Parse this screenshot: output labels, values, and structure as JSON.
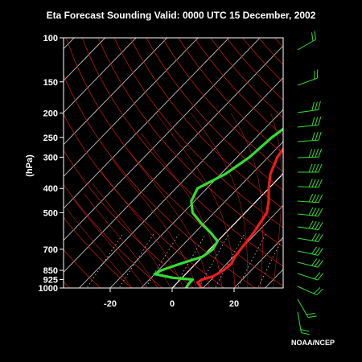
{
  "title": "Eta Forecast Sounding Valid: 0000 UTC 15 December, 2002",
  "credit": "NOAA/NCEP",
  "chart_data": {
    "type": "line",
    "title": "Eta Forecast Sounding Valid: 0000 UTC 15 December, 2002",
    "xlabel": "",
    "ylabel": "(hPa)",
    "y_scale": "log",
    "y_inverted": true,
    "xlim": [
      -35,
      35
    ],
    "ylim": [
      1000,
      100
    ],
    "x_ticks": [
      -20,
      0,
      20
    ],
    "x_tick_labels": [
      "-20",
      "0",
      "20"
    ],
    "y_ticks": [
      100,
      150,
      200,
      250,
      300,
      400,
      500,
      700,
      850,
      925,
      1000
    ],
    "y_tick_labels": [
      "100",
      "150",
      "200",
      "250",
      "300",
      "400",
      "500",
      "700",
      "850",
      "925",
      "1000"
    ],
    "series": [
      {
        "color": "#ee1c1c",
        "points": [
          {
            "p": 1000,
            "t": 9.5
          },
          {
            "p": 975,
            "t": 8
          },
          {
            "p": 950,
            "t": 6.5
          },
          {
            "p": 925,
            "t": 7
          },
          {
            "p": 900,
            "t": 9.5
          },
          {
            "p": 850,
            "t": 11
          },
          {
            "p": 800,
            "t": 11.5
          },
          {
            "p": 750,
            "t": 10.5
          },
          {
            "p": 700,
            "t": 10
          },
          {
            "p": 650,
            "t": 9.5
          },
          {
            "p": 600,
            "t": 9
          },
          {
            "p": 550,
            "t": 8
          },
          {
            "p": 500,
            "t": 7
          },
          {
            "p": 450,
            "t": 4
          },
          {
            "p": 400,
            "t": 0
          },
          {
            "p": 350,
            "t": -4
          },
          {
            "p": 300,
            "t": -7
          },
          {
            "p": 270,
            "t": -8
          },
          {
            "p": 250,
            "t": -8
          },
          {
            "p": 230,
            "t": -6
          },
          {
            "p": 200,
            "t": -3
          },
          {
            "p": 175,
            "t": 0.5
          },
          {
            "p": 150,
            "t": 4
          },
          {
            "p": 125,
            "t": 8
          },
          {
            "p": 110,
            "t": 11
          },
          {
            "p": 100,
            "t": 13
          }
        ]
      },
      {
        "color": "#33dd33",
        "points": [
          {
            "p": 1000,
            "t": 4.5
          },
          {
            "p": 960,
            "t": 4
          },
          {
            "p": 925,
            "t": 4
          },
          {
            "p": 910,
            "t": -3
          },
          {
            "p": 880,
            "t": -10
          },
          {
            "p": 850,
            "t": -9
          },
          {
            "p": 800,
            "t": -5
          },
          {
            "p": 750,
            "t": 0
          },
          {
            "p": 700,
            "t": 1
          },
          {
            "p": 650,
            "t": 0
          },
          {
            "p": 600,
            "t": -5
          },
          {
            "p": 550,
            "t": -11
          },
          {
            "p": 500,
            "t": -17
          },
          {
            "p": 450,
            "t": -21
          },
          {
            "p": 400,
            "t": -23
          },
          {
            "p": 350,
            "t": -18.5
          },
          {
            "p": 300,
            "t": -16
          },
          {
            "p": 250,
            "t": -15
          },
          {
            "p": 200,
            "t": -12
          },
          {
            "p": 150,
            "t": -8
          },
          {
            "p": 120,
            "t": -3
          },
          {
            "p": 100,
            "t": 2
          }
        ]
      }
    ],
    "wind_barbs_color": "#33dd33",
    "background_lines": [
      "isotherms",
      "dry adiabats",
      "moist adiabats",
      "mixing ratio"
    ],
    "grid": true
  }
}
